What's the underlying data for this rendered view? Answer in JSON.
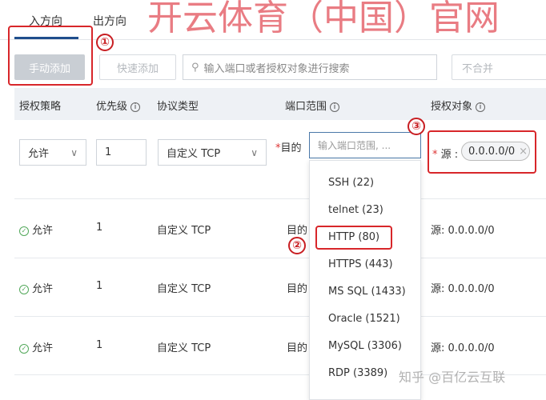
{
  "tabs": {
    "inbound": "入方向",
    "outbound": "出方向"
  },
  "toolbar": {
    "manual_add": "手动添加",
    "quick_add": "快速添加",
    "search_placeholder": "输入端口或者授权对象进行搜索",
    "merge": "不合并"
  },
  "table": {
    "headers": [
      "授权策略",
      "优先级",
      "协议类型",
      "端口范围",
      "授权对象"
    ],
    "edit_row": {
      "policy": "允许",
      "priority": "1",
      "protocol": "自定义 TCP",
      "port_label": "目的",
      "port_placeholder": "输入端口范围, ...",
      "source_label": "源 :",
      "source_tag": "0.0.0.0/0"
    },
    "rows": [
      {
        "policy": "允许",
        "priority": "1",
        "protocol": "自定义 TCP",
        "port": "目的",
        "source": "源: 0.0.0.0/0"
      },
      {
        "policy": "允许",
        "priority": "1",
        "protocol": "自定义 TCP",
        "port": "目的",
        "source": "源: 0.0.0.0/0"
      },
      {
        "policy": "允许",
        "priority": "1",
        "protocol": "自定义 TCP",
        "port": "目的",
        "source": "源: 0.0.0.0/0"
      }
    ]
  },
  "port_dropdown": [
    "SSH (22)",
    "telnet (23)",
    "HTTP (80)",
    "HTTPS (443)",
    "MS SQL (1433)",
    "Oracle (1521)",
    "MySQL (3306)",
    "RDP (3389)"
  ],
  "annotations": [
    "①",
    "②",
    "③"
  ],
  "watermarks": {
    "top": "开云体育（中国）官网",
    "bottom": "知乎 @百亿云互联"
  },
  "colors": {
    "accent": "#1f4e8c",
    "annotation": "#d8262a",
    "allow": "#52a85a"
  }
}
